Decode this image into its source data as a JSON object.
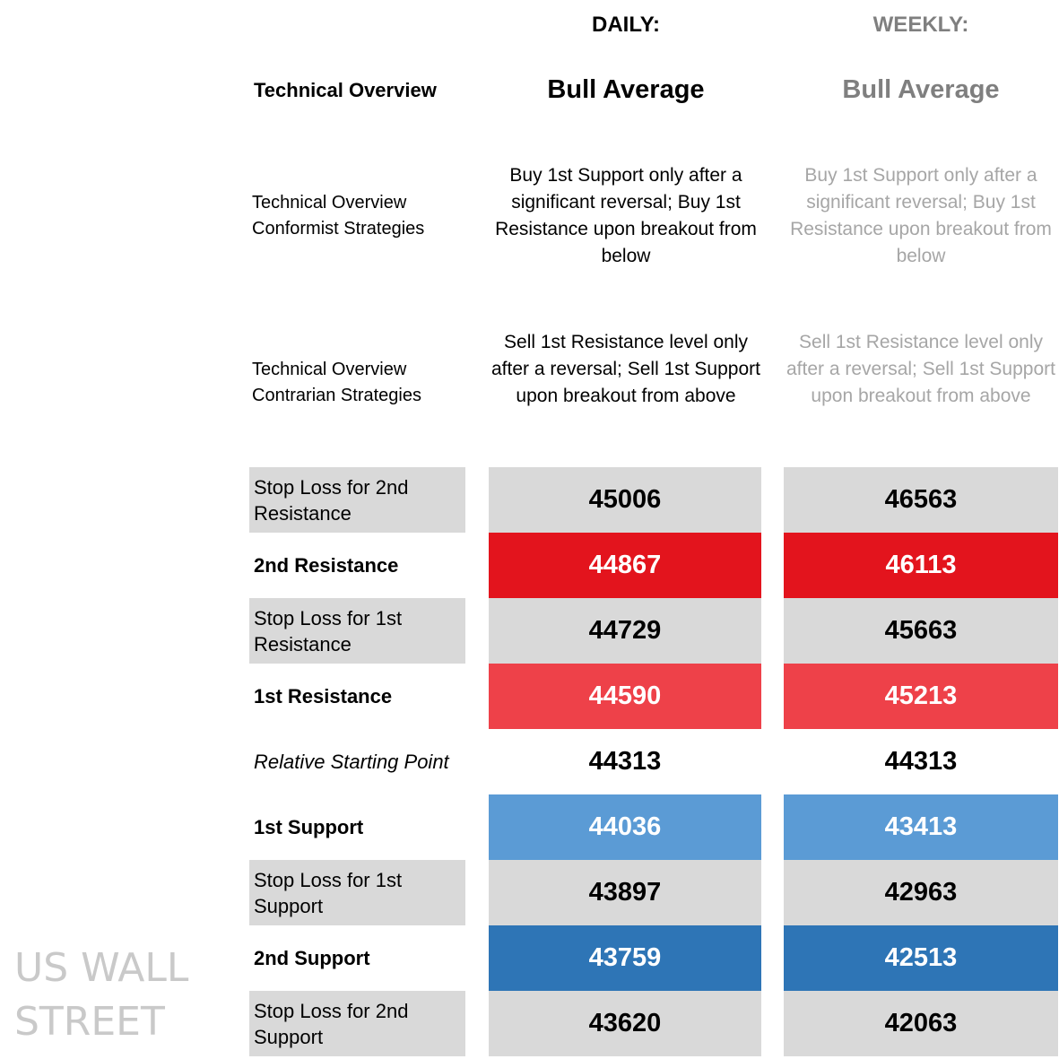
{
  "header": {
    "daily_label": "DAILY:",
    "weekly_label": "WEEKLY:",
    "overview_title": "Technical Overview",
    "daily_bias": "Bull Average",
    "weekly_bias": "Bull Average"
  },
  "strategies": {
    "conformist_label_line1": "Technical Overview",
    "conformist_label_line2": "Conformist Strategies",
    "conformist_daily": "Buy 1st Support only after a significant reversal; Buy 1st Resistance upon breakout from below",
    "conformist_weekly": "Buy 1st Support only after a significant reversal; Buy 1st Resistance upon breakout from below",
    "contrarian_label_line1": "Technical Overview",
    "contrarian_label_line2": "Contrarian Strategies",
    "contrarian_daily": "Sell 1st Resistance level only after a reversal; Sell 1st Support upon breakout from above",
    "contrarian_weekly": "Sell 1st Resistance level only after a reversal; Sell 1st Support upon breakout from above"
  },
  "rows": [
    {
      "label": "Stop Loss for 2nd Resistance",
      "daily": "45006",
      "weekly": "46563"
    },
    {
      "label": "2nd Resistance",
      "daily": "44867",
      "weekly": "46113"
    },
    {
      "label": "Stop Loss for 1st Resistance",
      "daily": "44729",
      "weekly": "45663"
    },
    {
      "label": "1st Resistance",
      "daily": "44590",
      "weekly": "45213"
    },
    {
      "label": "Relative Starting Point",
      "daily": "44313",
      "weekly": "44313"
    },
    {
      "label": "1st Support",
      "daily": "44036",
      "weekly": "43413"
    },
    {
      "label": "Stop Loss for 1st Support",
      "daily": "43897",
      "weekly": "42963"
    },
    {
      "label": "2nd Support",
      "daily": "43759",
      "weekly": "42513"
    },
    {
      "label": "Stop Loss for 2nd Support",
      "daily": "43620",
      "weekly": "42063"
    }
  ],
  "colors": {
    "grey": "#d9d9d9",
    "resistance_2": "#e3141d",
    "resistance_1": "#ee4149",
    "support_1": "#5b9bd5",
    "support_2": "#2e75b6",
    "muted_text": "#7f7f7f"
  },
  "watermark": {
    "line1": "US WALL",
    "line2": "STREET"
  }
}
